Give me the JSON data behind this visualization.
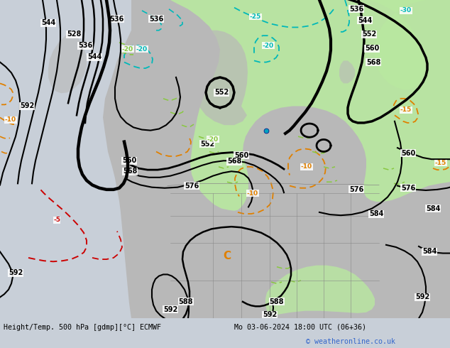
{
  "title_bottom_left": "Height/Temp. 500 hPa [gdmp][°C] ECMWF",
  "title_bottom_right": "Mo 03-06-2024 18:00 UTC (06+36)",
  "copyright": "© weatheronline.co.uk",
  "bg_color": "#c8cfd8",
  "land_gray": "#b8b8b8",
  "green_light": "#b8e8a0",
  "ocean_color": "#c8cfd8",
  "black": "#000000",
  "orange": "#e08000",
  "cyan": "#00b8b8",
  "lime": "#88c840",
  "red": "#cc0000",
  "blue_dot": "#00a0c0"
}
